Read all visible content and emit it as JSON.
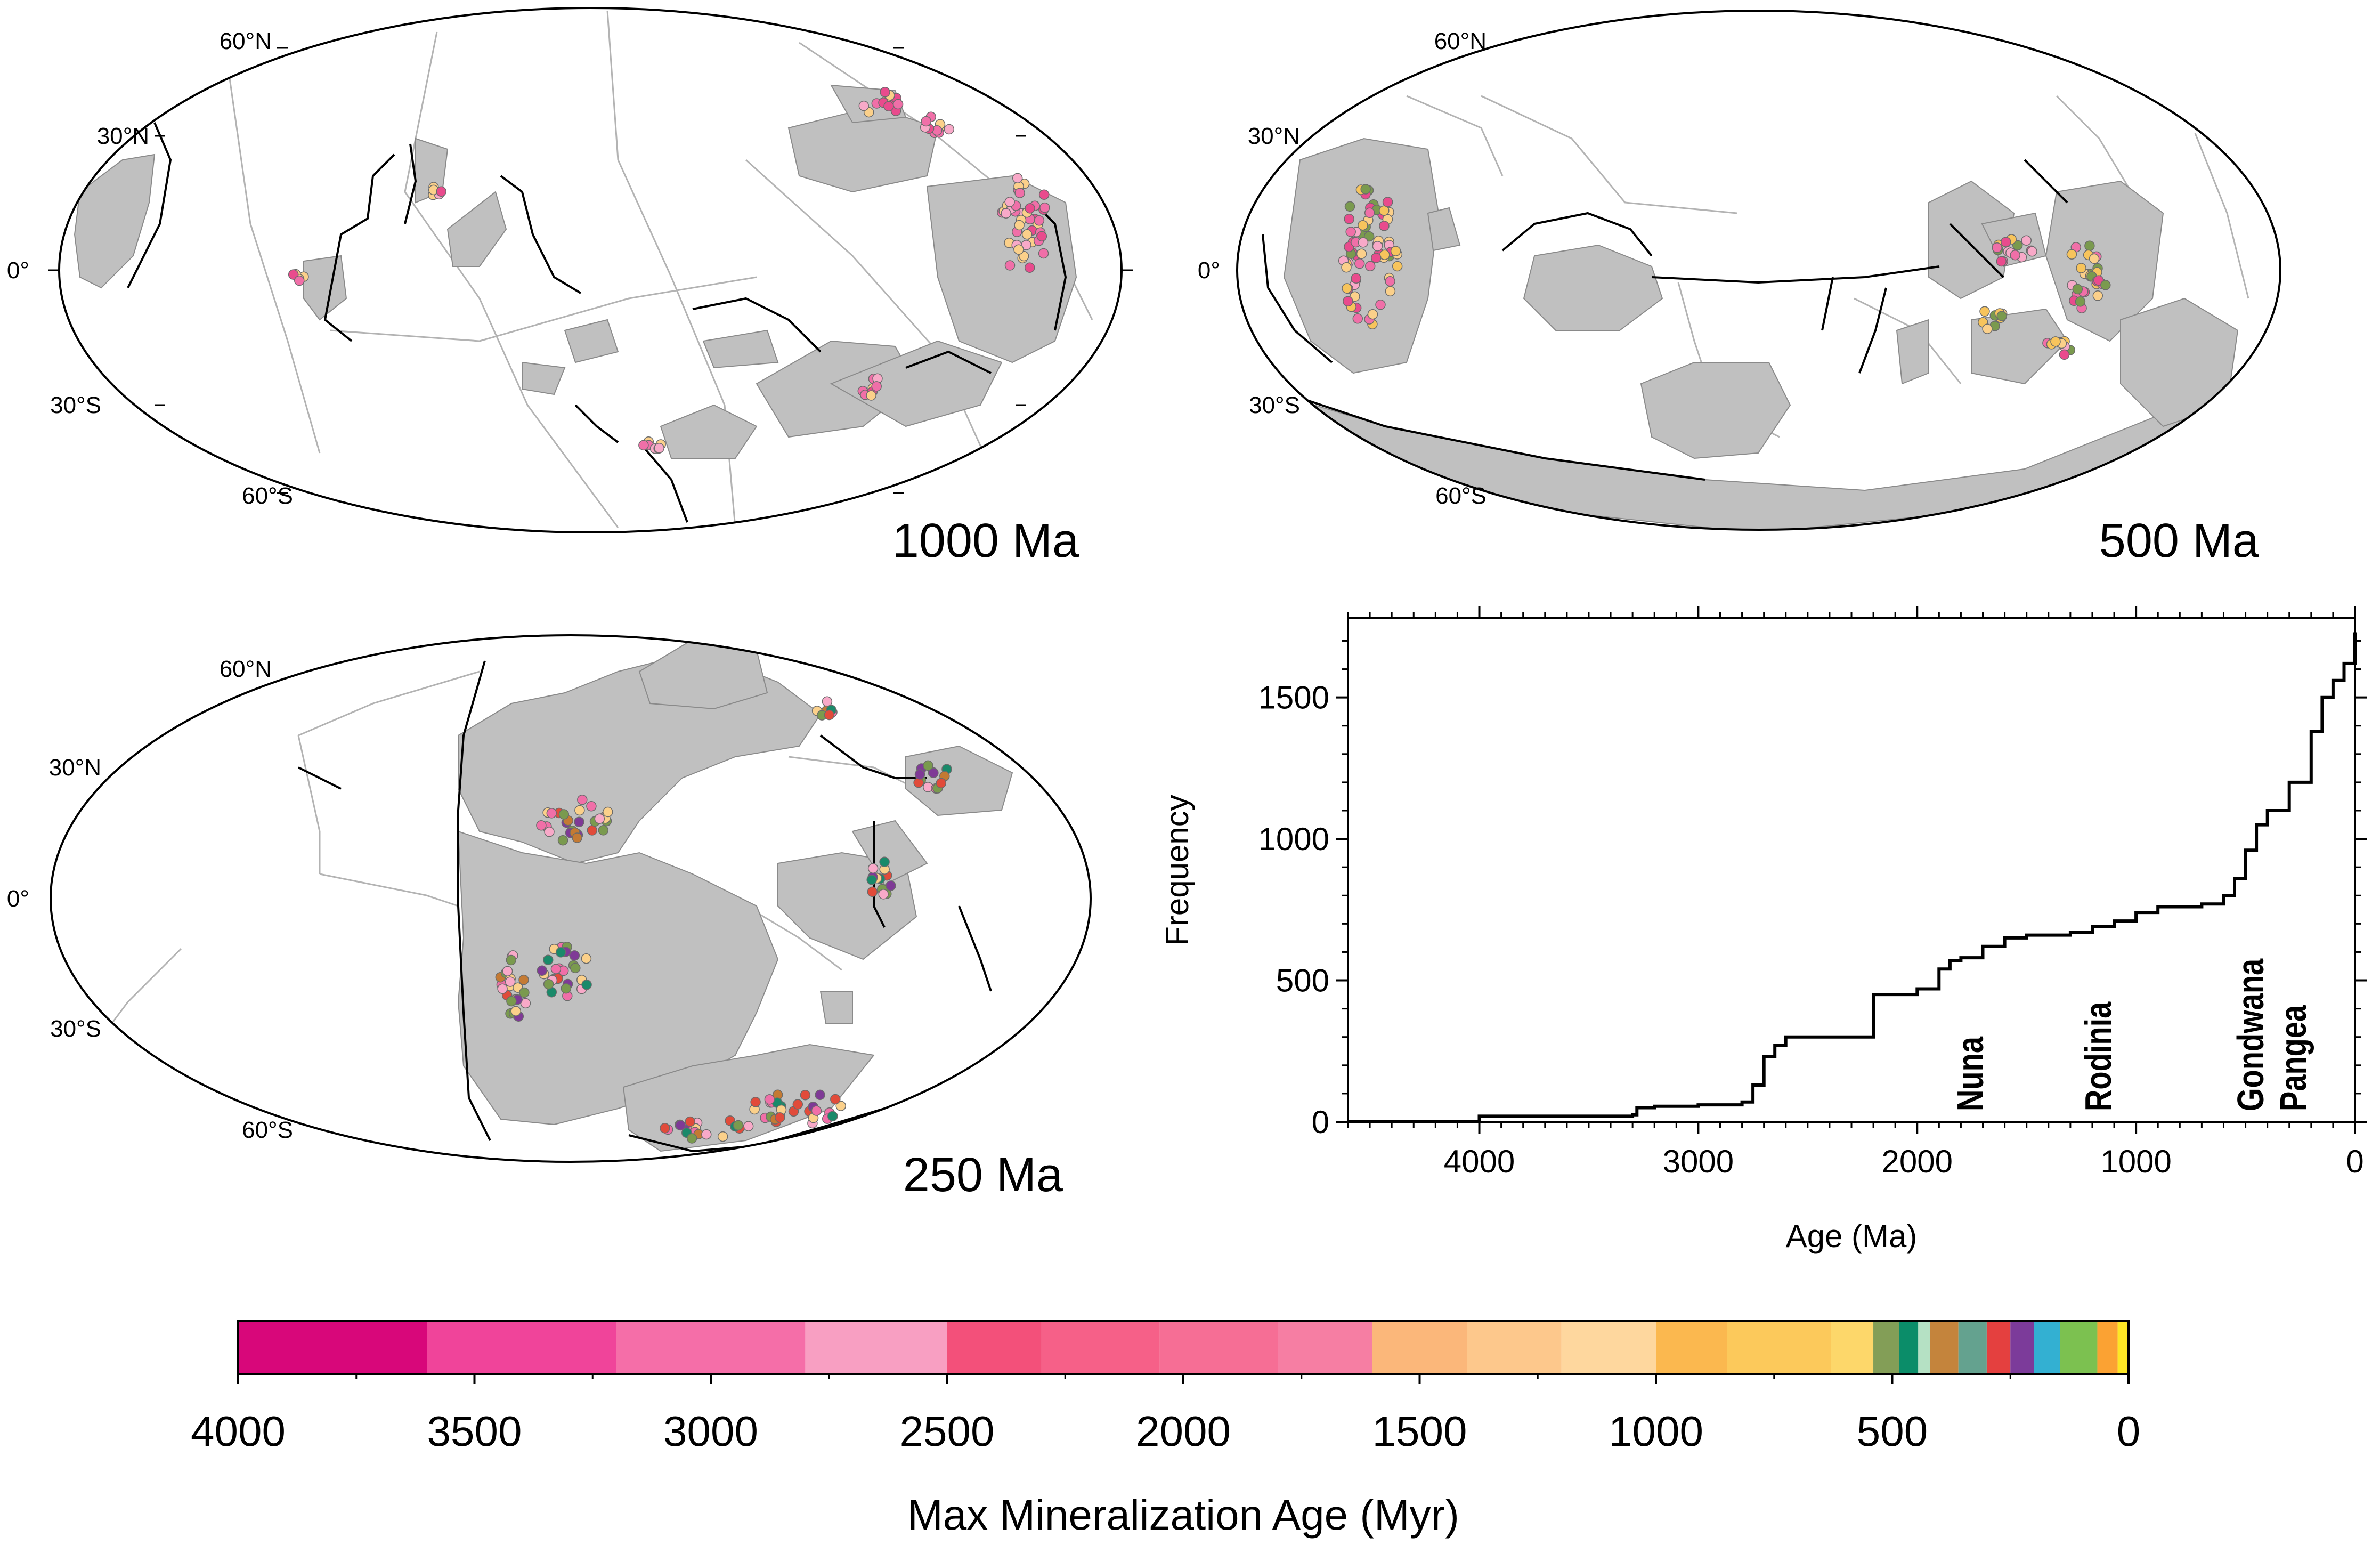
{
  "maps": [
    {
      "id": "map-1000",
      "title": "1000 Ma",
      "lat_labels": [
        "60°N",
        "30°N",
        "0°",
        "30°S",
        "60°S"
      ],
      "dot_colors": [
        "#f06fa8",
        "#f8a9c8",
        "#fbd08a",
        "#e94b8d"
      ]
    },
    {
      "id": "map-500",
      "title": "500 Ma",
      "lat_labels": [
        "60°N",
        "30°N",
        "0°",
        "30°S",
        "60°S"
      ],
      "dot_colors": [
        "#f06fa8",
        "#f8a9c8",
        "#fbd08a",
        "#f7c45c",
        "#7a9a4e",
        "#e94b8d"
      ]
    },
    {
      "id": "map-250",
      "title": "250 Ma",
      "lat_labels": [
        "60°N",
        "30°N",
        "0°",
        "30°S",
        "60°S"
      ],
      "dot_colors": [
        "#f8a9c8",
        "#fbd08a",
        "#1a8a6a",
        "#c47a33",
        "#e14b3a",
        "#7f3a96",
        "#7a9a4e",
        "#f06fa8"
      ]
    }
  ],
  "chart_data": {
    "type": "line",
    "xlabel": "Age (Ma)",
    "ylabel": "Frequency",
    "xlim": [
      4600,
      0
    ],
    "ylim": [
      0,
      1780
    ],
    "x_ticks": [
      4000,
      3000,
      2000,
      1000,
      0
    ],
    "y_ticks": [
      0,
      500,
      1000,
      1500
    ],
    "series": [
      {
        "x": [
          4600,
          4000,
          4000,
          3300,
          3280,
          3200,
          3000,
          2800,
          2750,
          2700,
          2650,
          2600,
          2500,
          2200,
          2200,
          2000,
          1900,
          1850,
          1800,
          1700,
          1600,
          1500,
          1300,
          1200,
          1100,
          1000,
          900,
          800,
          700,
          600,
          550,
          500,
          450,
          400,
          300,
          200,
          150,
          100,
          50,
          0
        ],
        "y": [
          0,
          0,
          20,
          25,
          50,
          55,
          60,
          70,
          130,
          230,
          270,
          300,
          300,
          300,
          450,
          470,
          540,
          570,
          580,
          620,
          650,
          660,
          670,
          690,
          710,
          740,
          760,
          760,
          770,
          800,
          860,
          960,
          1050,
          1100,
          1200,
          1380,
          1500,
          1560,
          1620,
          1730
        ]
      }
    ],
    "annotations": [
      "Nuna",
      "Rodinia",
      "Gondwana",
      "Pangea"
    ]
  },
  "colorbar": {
    "title": "Max Mineralization Age (Myr)",
    "tick_labels": [
      "4000",
      "3500",
      "3000",
      "2500",
      "2000",
      "1500",
      "1000",
      "500",
      "0"
    ],
    "tick_values": [
      4000,
      3500,
      3000,
      2500,
      2000,
      1500,
      1000,
      500,
      0
    ],
    "range": [
      4000,
      0
    ],
    "segments": [
      {
        "from": 4000,
        "to": 3600,
        "color": "#d8077a"
      },
      {
        "from": 3600,
        "to": 3200,
        "color": "#f0449a"
      },
      {
        "from": 3200,
        "to": 2800,
        "color": "#f56ea8"
      },
      {
        "from": 2800,
        "to": 2500,
        "color": "#f89fc2"
      },
      {
        "from": 2500,
        "to": 2300,
        "color": "#f3507a"
      },
      {
        "from": 2300,
        "to": 2050,
        "color": "#f66088"
      },
      {
        "from": 2050,
        "to": 1800,
        "color": "#f66e95"
      },
      {
        "from": 1800,
        "to": 1600,
        "color": "#f67ea3"
      },
      {
        "from": 1600,
        "to": 1400,
        "color": "#fbb77a"
      },
      {
        "from": 1400,
        "to": 1200,
        "color": "#fdc88c"
      },
      {
        "from": 1200,
        "to": 1000,
        "color": "#fed79e"
      },
      {
        "from": 1000,
        "to": 850,
        "color": "#fbb84f"
      },
      {
        "from": 850,
        "to": 630,
        "color": "#fcc95b"
      },
      {
        "from": 630,
        "to": 540,
        "color": "#fdd76a"
      },
      {
        "from": 540,
        "to": 485,
        "color": "#839e57"
      },
      {
        "from": 485,
        "to": 445,
        "color": "#0b8d69"
      },
      {
        "from": 445,
        "to": 420,
        "color": "#b5e1c4"
      },
      {
        "from": 420,
        "to": 360,
        "color": "#c4843c"
      },
      {
        "from": 360,
        "to": 300,
        "color": "#64a28f"
      },
      {
        "from": 300,
        "to": 250,
        "color": "#e4403f"
      },
      {
        "from": 250,
        "to": 200,
        "color": "#7c3b9a"
      },
      {
        "from": 200,
        "to": 145,
        "color": "#33b0d2"
      },
      {
        "from": 145,
        "to": 66,
        "color": "#7cc150"
      },
      {
        "from": 66,
        "to": 23,
        "color": "#fba233"
      },
      {
        "from": 23,
        "to": 0,
        "color": "#fde725"
      }
    ]
  }
}
